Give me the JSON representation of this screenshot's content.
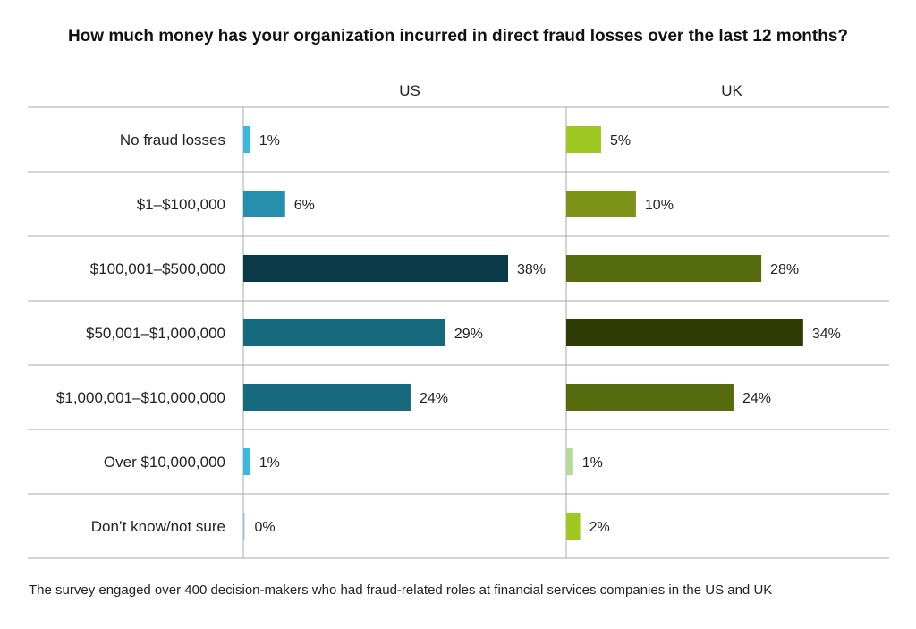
{
  "chart_data": {
    "type": "bar",
    "title": "How much money has your organization incurred in direct fraud losses over the last 12 months?",
    "categories": [
      "No fraud losses",
      "$1–$100,000",
      "$100,001–$500,000",
      "$50,001–$1,000,000",
      "$1,000,001–$10,000,000",
      "Over $10,000,000",
      "Don’t know/not sure"
    ],
    "series": [
      {
        "name": "US",
        "values": [
          1,
          6,
          38,
          29,
          24,
          1,
          0
        ],
        "labels": [
          "1%",
          "6%",
          "38%",
          "29%",
          "24%",
          "1%",
          "0%"
        ],
        "colors": [
          "#3bb8e0",
          "#268fad",
          "#0a3a48",
          "#176a7e",
          "#176a7e",
          "#3bb8e0",
          "#8ccbe0"
        ]
      },
      {
        "name": "UK",
        "values": [
          5,
          10,
          28,
          34,
          24,
          1,
          2
        ],
        "labels": [
          "5%",
          "10%",
          "28%",
          "34%",
          "24%",
          "1%",
          "2%"
        ],
        "colors": [
          "#a0c823",
          "#7d9318",
          "#556b0e",
          "#2e3b03",
          "#556b0e",
          "#b8d99c",
          "#a0c823"
        ]
      }
    ],
    "unit": "%",
    "xlim": [
      0,
      38
    ]
  },
  "footnote": "The survey engaged over 400 decision-makers who had fraud-related roles at financial services companies in the US and UK"
}
